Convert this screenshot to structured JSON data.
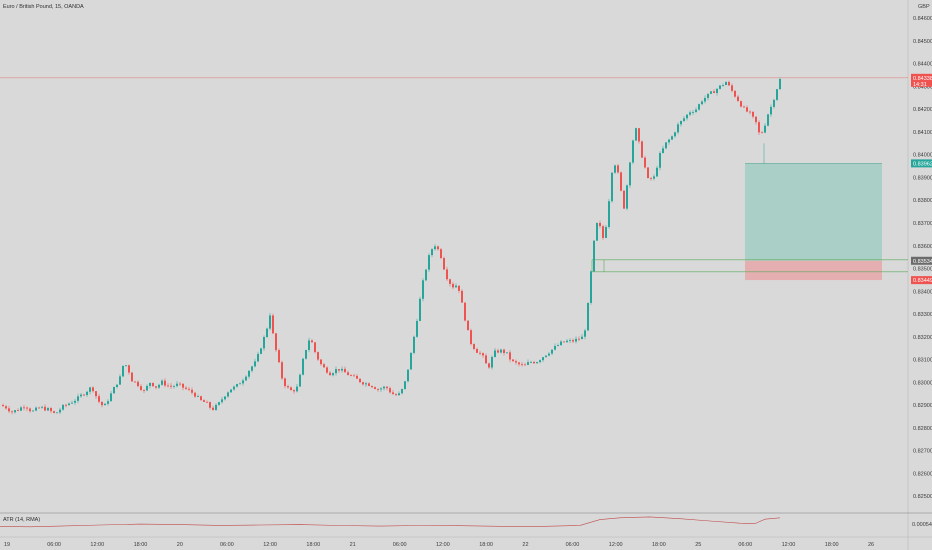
{
  "header": {
    "symbol_title": "Euro / British Pound, 15, OANDA",
    "currency": "GBP"
  },
  "indicator": {
    "label": "ATR (14, RMA)",
    "value_label": "0.00054"
  },
  "price_tags": {
    "current": "0.84338",
    "countdown": "14:31",
    "target": "0.83962",
    "entry": "0.83534",
    "stop": "0.83449"
  },
  "colors": {
    "up": "#26a69a",
    "down": "#ef5350",
    "target_zone": "#a9cfc6",
    "stop_zone": "#e5aeb0",
    "atr_line": "#c04a4a"
  },
  "chart_data": {
    "type": "candlestick",
    "title": "Euro / British Pound, 15, OANDA",
    "y_ticks": [
      "0.84600",
      "0.84500",
      "0.84400",
      "0.84300",
      "0.84200",
      "0.84100",
      "0.84000",
      "0.83900",
      "0.83800",
      "0.83700",
      "0.83600",
      "0.83500",
      "0.83400",
      "0.83300",
      "0.83200",
      "0.83100",
      "0.83000",
      "0.82900",
      "0.82800",
      "0.82700",
      "0.82600",
      "0.82500"
    ],
    "ylim": [
      0.8243,
      0.8468
    ],
    "x_ticks": [
      "19",
      "06:00",
      "12:00",
      "18:00",
      "20",
      "06:00",
      "12:00",
      "18:00",
      "21",
      "06:00",
      "12:00",
      "18:00",
      "22",
      "06:00",
      "12:00",
      "18:00",
      "25",
      "06:00",
      "12:00",
      "18:00",
      "26"
    ],
    "close_path": [
      [
        0,
        0.829
      ],
      [
        6,
        0.8289
      ],
      [
        12,
        0.8287
      ],
      [
        18,
        0.8288
      ],
      [
        25,
        0.829
      ],
      [
        32,
        0.8287
      ],
      [
        40,
        0.8289
      ],
      [
        48,
        0.8288
      ],
      [
        55,
        0.8286
      ],
      [
        62,
        0.8289
      ],
      [
        70,
        0.8291
      ],
      [
        78,
        0.8293
      ],
      [
        86,
        0.8296
      ],
      [
        92,
        0.8298
      ],
      [
        98,
        0.8292
      ],
      [
        104,
        0.8289
      ],
      [
        110,
        0.8294
      ],
      [
        116,
        0.8299
      ],
      [
        120,
        0.8302
      ],
      [
        124,
        0.8309
      ],
      [
        128,
        0.8306
      ],
      [
        132,
        0.8301
      ],
      [
        138,
        0.8299
      ],
      [
        144,
        0.8296
      ],
      [
        150,
        0.83
      ],
      [
        156,
        0.8298
      ],
      [
        162,
        0.83
      ],
      [
        170,
        0.8298
      ],
      [
        178,
        0.8299
      ],
      [
        186,
        0.8297
      ],
      [
        194,
        0.8295
      ],
      [
        200,
        0.8292
      ],
      [
        206,
        0.8291
      ],
      [
        212,
        0.8288
      ],
      [
        218,
        0.829
      ],
      [
        224,
        0.8294
      ],
      [
        230,
        0.8297
      ],
      [
        236,
        0.8298
      ],
      [
        244,
        0.8302
      ],
      [
        250,
        0.8306
      ],
      [
        256,
        0.8309
      ],
      [
        262,
        0.8317
      ],
      [
        266,
        0.8322
      ],
      [
        270,
        0.833
      ],
      [
        274,
        0.8318
      ],
      [
        278,
        0.831
      ],
      [
        282,
        0.8302
      ],
      [
        286,
        0.8298
      ],
      [
        292,
        0.8296
      ],
      [
        298,
        0.8298
      ],
      [
        304,
        0.8312
      ],
      [
        310,
        0.832
      ],
      [
        316,
        0.8312
      ],
      [
        322,
        0.8307
      ],
      [
        330,
        0.8304
      ],
      [
        338,
        0.8306
      ],
      [
        346,
        0.8304
      ],
      [
        354,
        0.8302
      ],
      [
        362,
        0.83
      ],
      [
        370,
        0.8299
      ],
      [
        378,
        0.8297
      ],
      [
        386,
        0.8298
      ],
      [
        392,
        0.8295
      ],
      [
        398,
        0.8294
      ],
      [
        404,
        0.8298
      ],
      [
        410,
        0.831
      ],
      [
        416,
        0.8325
      ],
      [
        422,
        0.8342
      ],
      [
        428,
        0.8354
      ],
      [
        434,
        0.8361
      ],
      [
        440,
        0.8357
      ],
      [
        446,
        0.8347
      ],
      [
        452,
        0.8342
      ],
      [
        458,
        0.8343
      ],
      [
        464,
        0.833
      ],
      [
        470,
        0.8318
      ],
      [
        476,
        0.8314
      ],
      [
        482,
        0.8312
      ],
      [
        488,
        0.8306
      ],
      [
        494,
        0.8313
      ],
      [
        500,
        0.8314
      ],
      [
        506,
        0.8313
      ],
      [
        512,
        0.8309
      ],
      [
        518,
        0.8308
      ],
      [
        524,
        0.8307
      ],
      [
        530,
        0.8309
      ],
      [
        536,
        0.8309
      ],
      [
        542,
        0.8311
      ],
      [
        548,
        0.8313
      ],
      [
        554,
        0.8315
      ],
      [
        560,
        0.8317
      ],
      [
        566,
        0.8318
      ],
      [
        572,
        0.8318
      ],
      [
        578,
        0.8319
      ],
      [
        584,
        0.832
      ],
      [
        588,
        0.8334
      ],
      [
        592,
        0.8353
      ],
      [
        596,
        0.837
      ],
      [
        600,
        0.8368
      ],
      [
        604,
        0.8362
      ],
      [
        608,
        0.8376
      ],
      [
        612,
        0.8393
      ],
      [
        616,
        0.8397
      ],
      [
        620,
        0.8386
      ],
      [
        624,
        0.8377
      ],
      [
        628,
        0.839
      ],
      [
        632,
        0.8405
      ],
      [
        636,
        0.8411
      ],
      [
        640,
        0.8403
      ],
      [
        644,
        0.8396
      ],
      [
        648,
        0.8389
      ],
      [
        654,
        0.839
      ],
      [
        660,
        0.84
      ],
      [
        666,
        0.8405
      ],
      [
        672,
        0.8408
      ],
      [
        678,
        0.8413
      ],
      [
        684,
        0.8416
      ],
      [
        690,
        0.8419
      ],
      [
        696,
        0.842
      ],
      [
        702,
        0.8424
      ],
      [
        708,
        0.8426
      ],
      [
        714,
        0.8428
      ],
      [
        720,
        0.843
      ],
      [
        726,
        0.8432
      ],
      [
        732,
        0.8428
      ],
      [
        738,
        0.8424
      ],
      [
        744,
        0.842
      ],
      [
        750,
        0.8418
      ],
      [
        756,
        0.8414
      ],
      [
        760,
        0.8408
      ],
      [
        764,
        0.8412
      ],
      [
        768,
        0.8418
      ],
      [
        772,
        0.8422
      ],
      [
        776,
        0.8428
      ],
      [
        780,
        0.8433
      ]
    ],
    "atr_path": [
      [
        0,
        0.42
      ],
      [
        30,
        0.4
      ],
      [
        60,
        0.44
      ],
      [
        100,
        0.5
      ],
      [
        140,
        0.55
      ],
      [
        180,
        0.52
      ],
      [
        220,
        0.48
      ],
      [
        260,
        0.5
      ],
      [
        300,
        0.52
      ],
      [
        340,
        0.47
      ],
      [
        380,
        0.44
      ],
      [
        420,
        0.47
      ],
      [
        460,
        0.46
      ],
      [
        500,
        0.43
      ],
      [
        540,
        0.42
      ],
      [
        580,
        0.48
      ],
      [
        600,
        0.8
      ],
      [
        620,
        0.9
      ],
      [
        650,
        0.95
      ],
      [
        680,
        0.85
      ],
      [
        710,
        0.72
      ],
      [
        740,
        0.6
      ],
      [
        755,
        0.58
      ],
      [
        765,
        0.82
      ],
      [
        780,
        0.9
      ]
    ],
    "atr_range": [
      0,
      1
    ],
    "long_position": {
      "entry": 0.83534,
      "target": 0.83962,
      "stop": 0.83449
    },
    "current_price": 0.84338
  }
}
